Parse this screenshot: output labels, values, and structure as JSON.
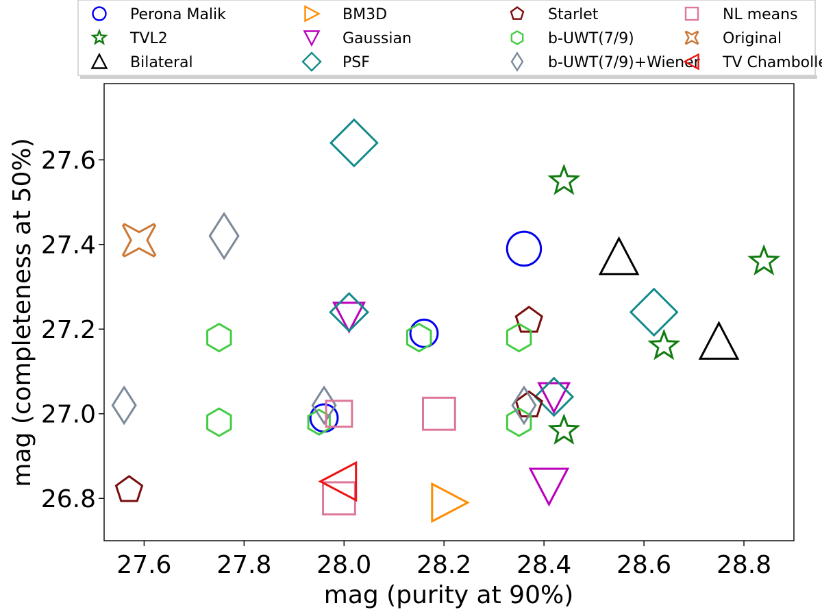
{
  "chart_data": {
    "type": "scatter",
    "title": "",
    "xlabel": "mag (purity at 90%)",
    "ylabel": "mag (completeness at 50%)",
    "xlim": [
      27.52,
      28.9
    ],
    "ylim": [
      26.7,
      27.78
    ],
    "xticks": [
      "27.6",
      "27.8",
      "28.0",
      "28.2",
      "28.4",
      "28.6",
      "28.8"
    ],
    "yticks": [
      "26.8",
      "27.0",
      "27.2",
      "27.4",
      "27.6"
    ],
    "grid": false,
    "legend_position": "top (above plot), 4 columns",
    "series": [
      {
        "name": "Perona Malik",
        "marker": "circle",
        "color": "#0000ee",
        "points": [
          [
            28.36,
            27.39,
            "large"
          ],
          [
            28.16,
            27.19,
            "medium"
          ],
          [
            27.96,
            26.99,
            "medium"
          ]
        ]
      },
      {
        "name": "TVL2",
        "marker": "star",
        "color": "#117a11",
        "points": [
          [
            28.44,
            27.55,
            "medium"
          ],
          [
            28.84,
            27.36,
            "medium"
          ],
          [
            28.64,
            27.16,
            "medium"
          ],
          [
            28.44,
            26.96,
            "medium"
          ]
        ]
      },
      {
        "name": "Bilateral",
        "marker": "triangle-up",
        "color": "#000000",
        "points": [
          [
            28.55,
            27.37,
            "large"
          ],
          [
            28.75,
            27.17,
            "large"
          ]
        ]
      },
      {
        "name": "BM3D",
        "marker": "triangle-right",
        "color": "#ff8c00",
        "points": [
          [
            28.21,
            26.79,
            "large"
          ]
        ]
      },
      {
        "name": "Gaussian",
        "marker": "triangle-down",
        "color": "#bb00bb",
        "points": [
          [
            28.01,
            27.23,
            "medium"
          ],
          [
            28.42,
            27.04,
            "medium"
          ],
          [
            28.41,
            26.83,
            "large"
          ]
        ]
      },
      {
        "name": "PSF",
        "marker": "diamond",
        "color": "#138a8a",
        "points": [
          [
            28.02,
            27.64,
            "large"
          ],
          [
            28.01,
            27.24,
            "medium"
          ],
          [
            28.62,
            27.24,
            "large"
          ],
          [
            28.42,
            27.04,
            "medium"
          ]
        ]
      },
      {
        "name": "Starlet",
        "marker": "pentagon",
        "color": "#7a0d0d",
        "points": [
          [
            28.37,
            27.22,
            "medium"
          ],
          [
            28.37,
            27.02,
            "medium"
          ],
          [
            27.57,
            26.82,
            "medium"
          ]
        ]
      },
      {
        "name": "b-UWT(7/9)",
        "marker": "hexagon",
        "color": "#44cc44",
        "points": [
          [
            27.75,
            27.18,
            "medium"
          ],
          [
            28.15,
            27.18,
            "medium"
          ],
          [
            28.35,
            27.18,
            "medium"
          ],
          [
            27.75,
            26.98,
            "medium"
          ],
          [
            27.95,
            26.98,
            "small"
          ],
          [
            28.35,
            26.98,
            "medium"
          ]
        ]
      },
      {
        "name": "b-UWT(7/9)+Wiener",
        "marker": "thin-diamond",
        "color": "#7a8a9a",
        "points": [
          [
            27.76,
            27.42,
            "large"
          ],
          [
            27.56,
            27.02,
            "medium"
          ],
          [
            27.96,
            27.02,
            "medium"
          ],
          [
            28.36,
            27.02,
            "medium"
          ]
        ]
      },
      {
        "name": "NL means",
        "marker": "square",
        "color": "#dd7799",
        "points": [
          [
            27.99,
            27.0,
            "medium"
          ],
          [
            28.19,
            27.0,
            "large"
          ],
          [
            27.99,
            26.8,
            "large"
          ]
        ]
      },
      {
        "name": "Original",
        "marker": "cross",
        "color": "#cc7733",
        "points": [
          [
            27.59,
            27.41,
            "large"
          ]
        ]
      },
      {
        "name": "TV Chambolle",
        "marker": "triangle-left",
        "color": "#ee1111",
        "points": [
          [
            27.99,
            26.84,
            "large"
          ]
        ]
      }
    ]
  }
}
